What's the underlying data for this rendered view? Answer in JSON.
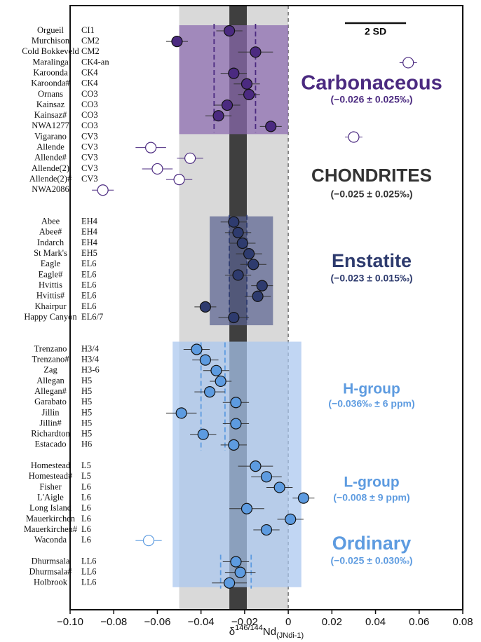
{
  "chart_data": {
    "type": "scatter",
    "xlabel": {
      "symbol": "δ",
      "sup": "146/144",
      "base": "Nd",
      "sub": "(JNdi-1)"
    },
    "xlim": [
      -0.1,
      0.08
    ],
    "xticks": [
      {
        "value": -0.1,
        "label": "−0.10"
      },
      {
        "value": -0.08,
        "label": "−0.08"
      },
      {
        "value": -0.06,
        "label": "−0.06"
      },
      {
        "value": -0.04,
        "label": "−0.04"
      },
      {
        "value": -0.02,
        "label": "−0.02"
      },
      0,
      0.02,
      0.04,
      0.06,
      0.08
    ],
    "band": [
      -0.05,
      0
    ],
    "mean_band": [
      -0.027,
      -0.019
    ],
    "zero_line": 0,
    "scalebar": {
      "label": "2 SD",
      "range": [
        0.026,
        0.054
      ]
    },
    "chondrites": {
      "name": "CHONDRITES",
      "note": "(−0.025 ± 0.025‰)",
      "color": "#333333"
    },
    "groups": [
      {
        "name": "Carbonaceous",
        "note": "(−0.026 ± 0.025‰)",
        "color": "#4b2a80",
        "box_color": "#8a6aae",
        "blocks": [
          {
            "box": [
              -0.05,
              0
            ],
            "range": [
              -0.034,
              -0.015
            ],
            "categories": [
              "Orgueil",
              "Murchison",
              "Cold Bokkeveld",
              "Maralinga",
              "Karoonda",
              "Karoonda#",
              "Ornans",
              "Kainsaz",
              "Kainsaz#",
              "NWA1277"
            ],
            "classes": [
              "CI1",
              "CM2",
              "CM2",
              "CK4-an",
              "CK4",
              "CK4",
              "CO3",
              "CO3",
              "CO3",
              "CO3"
            ],
            "values": [
              -0.027,
              -0.051,
              -0.015,
              0.055,
              -0.025,
              -0.019,
              -0.018,
              -0.028,
              -0.032,
              -0.008
            ],
            "errors": [
              0.006,
              0.005,
              0.008,
              0.004,
              0.006,
              0.006,
              0.005,
              0.006,
              0.006,
              0.005
            ],
            "hollow": [
              false,
              false,
              false,
              true,
              false,
              false,
              false,
              false,
              false,
              false
            ]
          },
          {
            "categories": [
              "Vigarano",
              "Allende",
              "Allende#",
              "Allende(2)",
              "Allende(2)#",
              "NWA2086"
            ],
            "classes": [
              "CV3",
              "CV3",
              "CV3",
              "CV3",
              "CV3",
              ""
            ],
            "values": [
              0.03,
              -0.063,
              -0.045,
              -0.06,
              -0.05,
              -0.085
            ],
            "errors": [
              0.004,
              0.007,
              0.006,
              0.007,
              0.006,
              0.005
            ],
            "hollow": [
              true,
              true,
              true,
              true,
              true,
              true
            ]
          }
        ]
      },
      {
        "name": "Enstatite",
        "note": "(−0.023 ± 0.015‰)",
        "color": "#2e3b6e",
        "box_color": "#5a6290",
        "blocks": [
          {
            "box": [
              -0.036,
              -0.007
            ],
            "range": [
              -0.027,
              -0.019
            ],
            "categories": [
              "Abee",
              "Abee#",
              "Indarch",
              "St Mark's",
              "Eagle",
              "Eagle#",
              "Hvittis",
              "Hvittis#",
              "Khairpur",
              "Happy Canyon"
            ],
            "classes": [
              "EH4",
              "EH4",
              "EH4",
              "EH5",
              "EL6",
              "EL6",
              "EL6",
              "EL6",
              "EL6",
              "EL6/7"
            ],
            "values": [
              -0.025,
              -0.023,
              -0.021,
              -0.018,
              -0.016,
              -0.023,
              -0.012,
              -0.014,
              -0.038,
              -0.025
            ],
            "errors": [
              0.006,
              0.006,
              0.006,
              0.006,
              0.006,
              0.006,
              0.005,
              0.006,
              0.005,
              0.007
            ],
            "hollow": [
              false,
              false,
              false,
              false,
              false,
              false,
              false,
              false,
              false,
              false
            ]
          }
        ]
      },
      {
        "name": "Ordinary",
        "note": "(−0.025 ± 0.030‰)",
        "color": "#5d9be0",
        "box_color": "#a9c6ef",
        "box": [
          -0.053,
          0.006
        ],
        "blocks": [
          {
            "name": "H-group",
            "note": "(−0.036‰ ± 6 ppm)",
            "range": [
              -0.04,
              -0.029
            ],
            "categories": [
              "Trenzano",
              "Trenzano#",
              "Zag",
              "Allegan",
              "Allegan#",
              "Garabato",
              "Jillin",
              "Jillin#",
              "Richardton",
              "Estacado"
            ],
            "classes": [
              "H3/4",
              "H3/4",
              "H3-6",
              "H5",
              "H5",
              "H5",
              "H5",
              "H5",
              "H5",
              "H6"
            ],
            "values": [
              -0.042,
              -0.038,
              -0.033,
              -0.031,
              -0.036,
              -0.024,
              -0.049,
              -0.024,
              -0.039,
              -0.025
            ],
            "errors": [
              0.006,
              0.006,
              0.006,
              0.005,
              0.007,
              0.006,
              0.007,
              0.006,
              0.006,
              0.006
            ],
            "hollow": [
              false,
              false,
              false,
              false,
              false,
              false,
              false,
              false,
              false,
              false
            ]
          },
          {
            "name": "L-group",
            "note": "(−0.008 ± 9 ppm)",
            "categories": [
              "Homestead",
              "Homestead#",
              "Fisher",
              "L'Aigle",
              "Long Island",
              "Mauerkirchen",
              "Mauerkirchen#",
              "Waconda"
            ],
            "classes": [
              "L5",
              "L5",
              "L6",
              "L6",
              "L6",
              "L6",
              "L6",
              "L6"
            ],
            "values": [
              -0.015,
              -0.01,
              -0.004,
              0.007,
              -0.019,
              0.001,
              -0.01,
              -0.064
            ],
            "errors": [
              0.008,
              0.007,
              0.006,
              0.005,
              0.008,
              0.006,
              0.006,
              0.006
            ],
            "hollow": [
              false,
              false,
              false,
              false,
              false,
              false,
              false,
              true
            ]
          },
          {
            "range": [
              -0.031,
              -0.017
            ],
            "categories": [
              "Dhurmsala",
              "Dhurmsala#",
              "Holbrook"
            ],
            "classes": [
              "LL6",
              "LL6",
              "LL6"
            ],
            "values": [
              -0.024,
              -0.022,
              -0.027
            ],
            "errors": [
              0.006,
              0.007,
              0.008
            ],
            "hollow": [
              false,
              false,
              false
            ]
          }
        ]
      }
    ]
  }
}
